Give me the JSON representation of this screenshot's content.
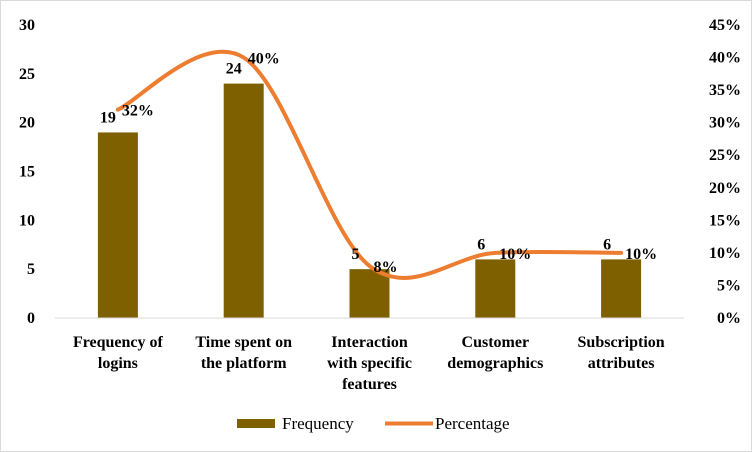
{
  "chart_data": {
    "type": "bar",
    "title": "",
    "xlabel": "",
    "ylabel": "",
    "categories": [
      [
        "Frequency of",
        "logins"
      ],
      [
        "Time spent on",
        "the platform"
      ],
      [
        "Interaction",
        "with specific",
        "features"
      ],
      [
        "Customer",
        "demographics"
      ],
      [
        "Subscription",
        "attributes"
      ]
    ],
    "series": [
      {
        "name": "Frequency",
        "type": "bar",
        "axis": "left",
        "values": [
          19,
          24,
          5,
          6,
          6
        ],
        "labels": [
          "19",
          "24",
          "5",
          "6",
          "6"
        ],
        "color": "#7f6000"
      },
      {
        "name": "Percentage",
        "type": "line",
        "smooth": true,
        "axis": "right",
        "values": [
          0.32,
          0.4,
          0.08,
          0.1,
          0.1
        ],
        "labels": [
          "32%",
          "40%",
          "8%",
          "10%",
          "10%"
        ],
        "color": "#ed7d31"
      }
    ],
    "ylim": [
      0,
      30
    ],
    "yticks": [
      "0",
      "5",
      "10",
      "15",
      "20",
      "25",
      "30"
    ],
    "y2lim": [
      0,
      0.45
    ],
    "y2ticks": [
      "0%",
      "5%",
      "10%",
      "15%",
      "20%",
      "25%",
      "30%",
      "35%",
      "40%",
      "45%"
    ],
    "grid": false,
    "legend": "bottom"
  }
}
